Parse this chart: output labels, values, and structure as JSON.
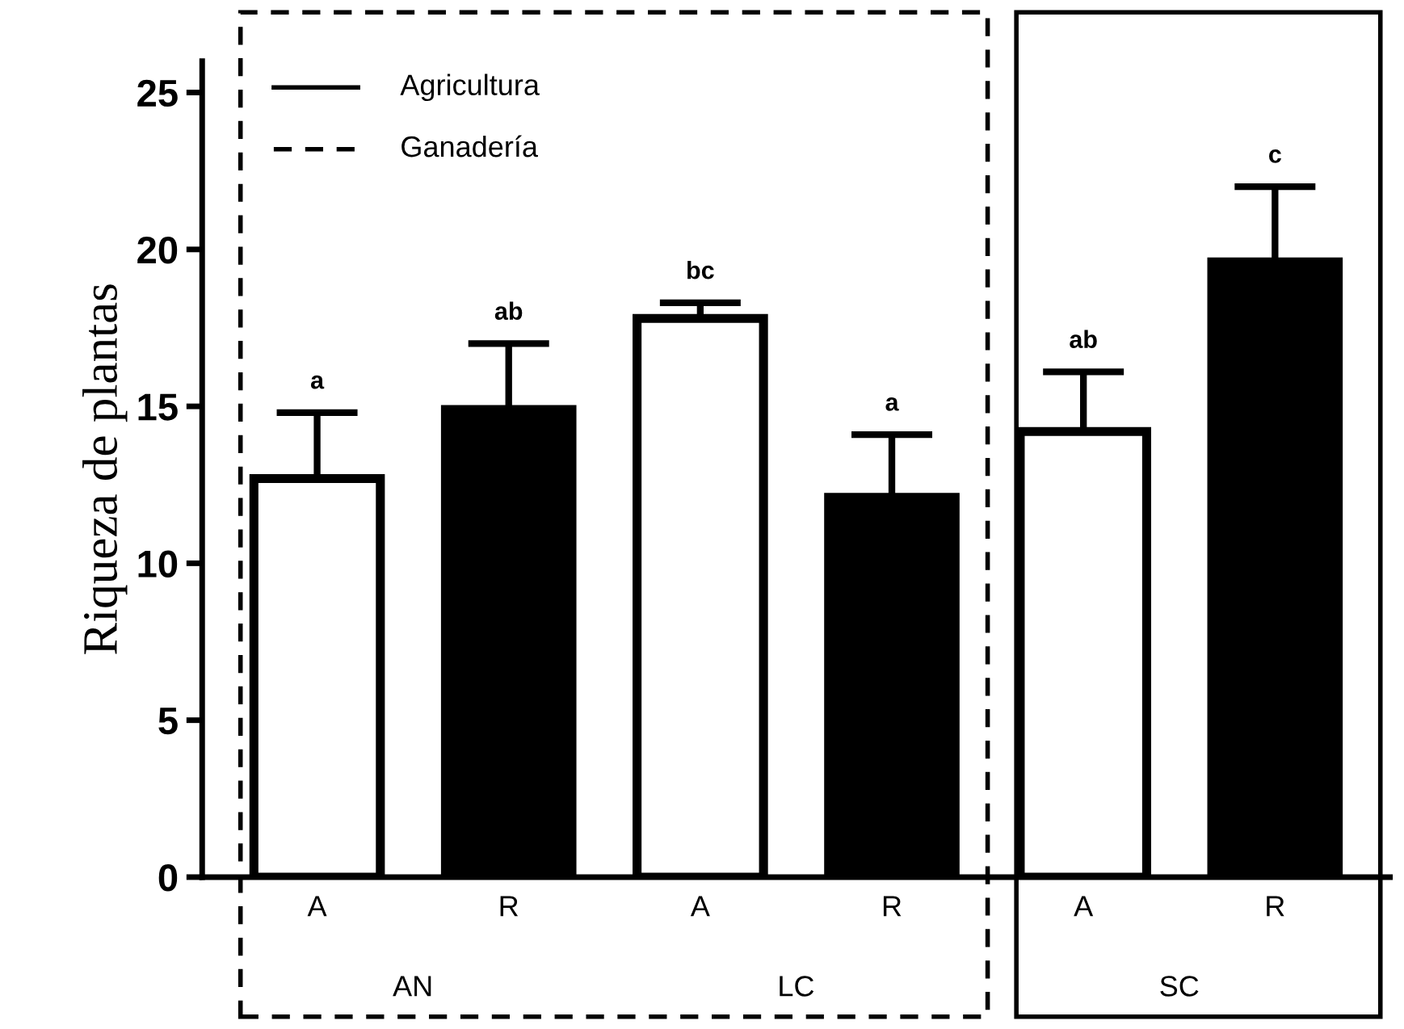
{
  "chart_data": {
    "type": "bar",
    "ylabel": "Riqueza de plantas",
    "categories": [
      "A",
      "R",
      "A",
      "R",
      "A",
      "R"
    ],
    "values": [
      12.7,
      14.9,
      17.8,
      12.1,
      14.2,
      19.6
    ],
    "colors": [
      "#ffffff",
      "#000000",
      "#ffffff",
      "#000000",
      "#ffffff",
      "#000000"
    ],
    "errors": [
      [
        12.7,
        14.8
      ],
      [
        14.9,
        17.0
      ],
      [
        17.8,
        18.3
      ],
      [
        12.1,
        14.1
      ],
      [
        14.2,
        16.1
      ],
      [
        19.6,
        22.0
      ]
    ],
    "ylim": [
      0,
      26
    ],
    "yticks": [
      0,
      5,
      10,
      15,
      20,
      25
    ],
    "annotations": [
      {
        "text": "a",
        "y": 14.8
      },
      {
        "text": "ab",
        "y": 17.0
      },
      {
        "text": "bc",
        "y": 18.3
      },
      {
        "text": "a",
        "y": 14.1
      },
      {
        "text": "ab",
        "y": 16.1
      },
      {
        "text": "c",
        "y": 22.0
      },
      "AN",
      "LC",
      "SC",
      "Agricultura",
      "Ganadería"
    ],
    "grid": false
  }
}
